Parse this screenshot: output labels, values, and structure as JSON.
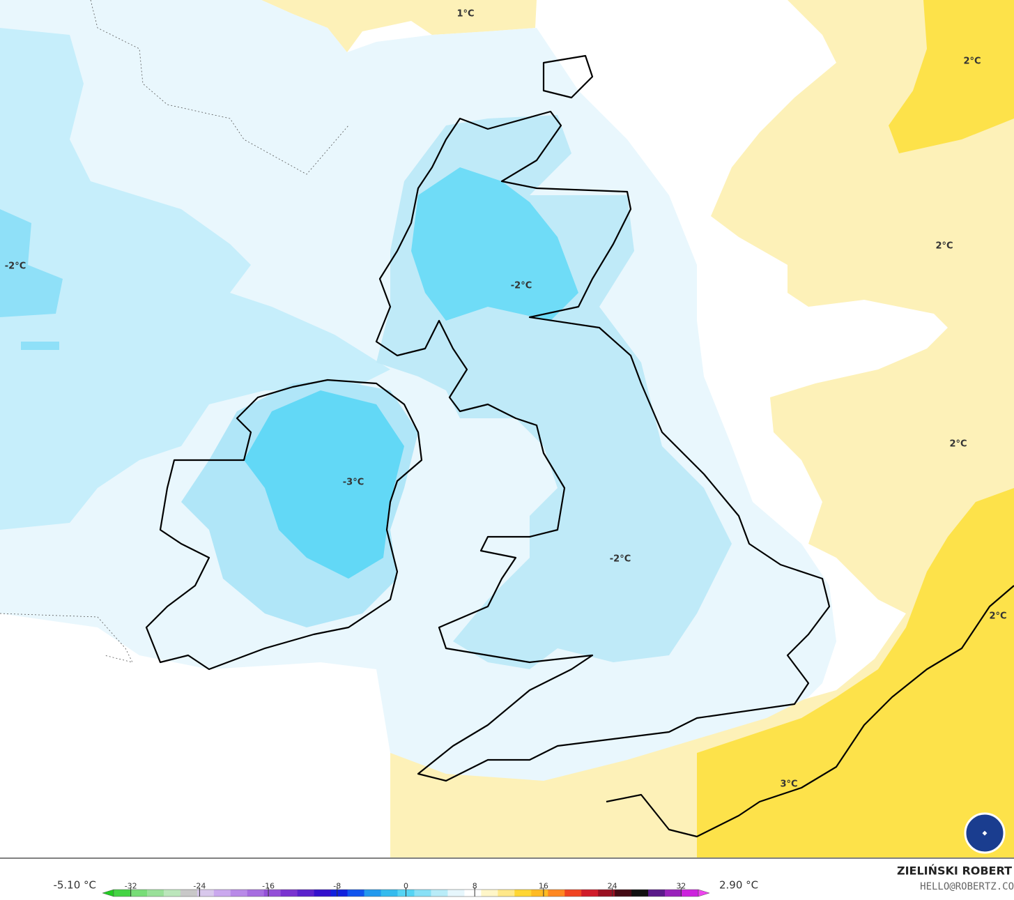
{
  "map_labels": [
    "1°C",
    "2°C",
    "2°C",
    "2°C",
    "2°C",
    "-2°C",
    "-2°C",
    "-2°C",
    "-3°C",
    "3°C"
  ],
  "colorbar": {
    "min_label": "-5.10 °C",
    "max_label": "2.90 °C",
    "lim": [
      -34,
      34
    ],
    "ticks": [
      -32,
      -24,
      -16,
      -8,
      0,
      8,
      16,
      24,
      32
    ],
    "colors": [
      "#22cc22",
      "#44d444",
      "#77dd77",
      "#99e099",
      "#bbe6bb",
      "#c8c8c8",
      "#d8c8ec",
      "#caa8ee",
      "#b88ae8",
      "#a66de0",
      "#9450d8",
      "#7a33d0",
      "#5a22cc",
      "#3311cc",
      "#1122dd",
      "#1155ee",
      "#2299ee",
      "#33bbee",
      "#55d4f4",
      "#88e0f6",
      "#b8ecf8",
      "#e6f6fc",
      "#ffffff",
      "#fff6c8",
      "#ffe88a",
      "#ffd633",
      "#ffbb22",
      "#ff8822",
      "#f04422",
      "#d01c2a",
      "#991122",
      "#440a14",
      "#111111",
      "#5a1a8a",
      "#9922bb",
      "#cc22dd",
      "#ee44ee"
    ]
  },
  "credit": {
    "author": "ZIELIŃSKI ROBERT",
    "email": "HELLO@ROBERTZ.CO"
  }
}
